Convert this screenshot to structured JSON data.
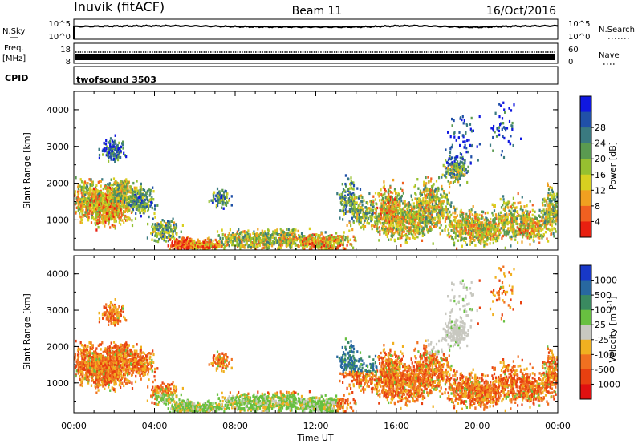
{
  "header": {
    "station": "Inuvik (fitACF)",
    "beam": "Beam 11",
    "date": "16/Oct/2016"
  },
  "nsky_panel": {
    "left_label": "N.Sky",
    "right_label": "N.Search",
    "left_ticks": [
      "10^5",
      "10^0"
    ],
    "right_ticks": [
      "10^5",
      "10^0"
    ]
  },
  "freq_panel": {
    "left_label": "Freq.",
    "left_unit": "[MHz]",
    "right_label": "Nave",
    "left_ticks": [
      "18",
      "8"
    ],
    "right_ticks": [
      "60",
      "0"
    ]
  },
  "cpid_panel": {
    "label": "CPID",
    "program": "twofsound 3503"
  },
  "time_axis": {
    "label": "Time UT",
    "ticks": [
      "00:00",
      "04:00",
      "08:00",
      "12:00",
      "16:00",
      "20:00",
      "00:00"
    ]
  },
  "chart_data": [
    {
      "type": "heatmap",
      "title": "",
      "ylabel": "Slant Range [km]",
      "xlabel": "",
      "ylim": [
        180,
        4500
      ],
      "yticks": [
        "1000",
        "2000",
        "3000",
        "4000"
      ],
      "colorbar": {
        "label": "Power [dB]",
        "ticks": [
          "4",
          "8",
          "12",
          "16",
          "20",
          "24",
          "28"
        ],
        "colors": [
          "#1018e0",
          "#2050a8",
          "#3a7a80",
          "#5a9a50",
          "#96c030",
          "#d8d020",
          "#f0a020",
          "#f06020",
          "#e82010"
        ]
      }
    },
    {
      "type": "heatmap",
      "title": "",
      "ylabel": "Slant Range [km]",
      "xlabel": "",
      "ylim": [
        180,
        4500
      ],
      "yticks": [
        "1000",
        "2000",
        "3000",
        "4000"
      ],
      "colorbar": {
        "label": "Velocity [m s^-1]",
        "ticks": [
          "1000",
          "500",
          "100",
          "25",
          "-25",
          "-100",
          "-500",
          "-1000"
        ],
        "colors": [
          "#1838c8",
          "#2868a0",
          "#3a8a60",
          "#68c040",
          "#c8c8c0",
          "#f0b020",
          "#f07020",
          "#e84010",
          "#e01010"
        ]
      }
    }
  ]
}
